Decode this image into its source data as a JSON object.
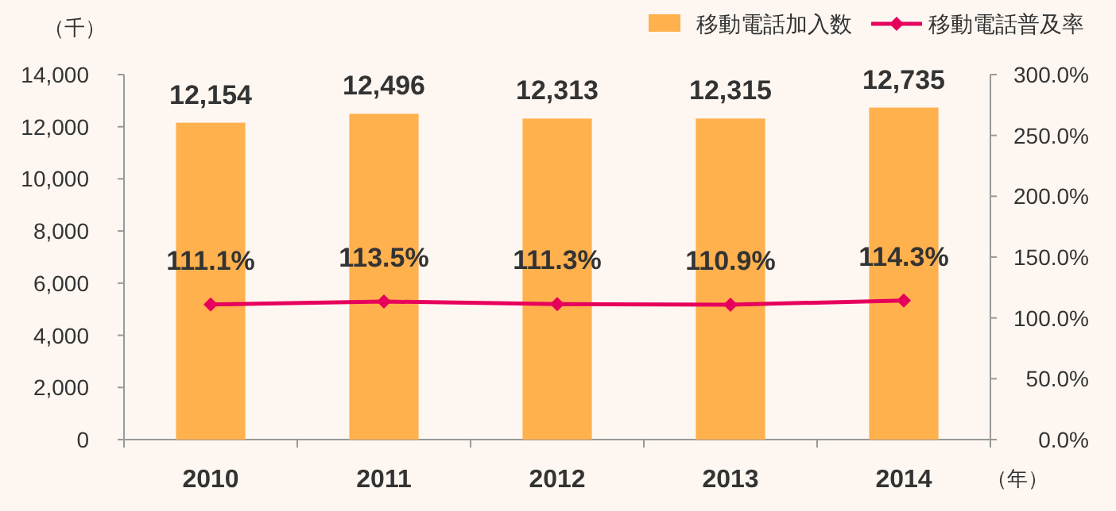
{
  "chart_data": {
    "type": "bar",
    "ylabel": "（千）",
    "xlabel": "（年）",
    "categories": [
      "2010",
      "2011",
      "2012",
      "2013",
      "2014"
    ],
    "series": [
      {
        "name": "移動電話加入数",
        "color": "#ffb14e",
        "values": [
          12154,
          12496,
          12313,
          12315,
          12735
        ],
        "value_labels": [
          "12,154",
          "12,496",
          "12,313",
          "12,315",
          "12,735"
        ]
      },
      {
        "name": "移動電話普及率",
        "type": "line",
        "axis": "y2",
        "color": "#e6005c",
        "values": [
          111.1,
          113.5,
          111.3,
          110.9,
          114.3
        ],
        "value_labels": [
          "111.1%",
          "113.5%",
          "111.3%",
          "110.9%",
          "114.3%"
        ]
      }
    ],
    "ylim": [
      0,
      14000
    ],
    "yticks": [
      {
        "value": 0,
        "label": "0"
      },
      {
        "value": 2000,
        "label": "2,000"
      },
      {
        "value": 4000,
        "label": "4,000"
      },
      {
        "value": 6000,
        "label": "6,000"
      },
      {
        "value": 8000,
        "label": "8,000"
      },
      {
        "value": 10000,
        "label": "10,000"
      },
      {
        "value": 12000,
        "label": "12,000"
      },
      {
        "value": 14000,
        "label": "14,000"
      }
    ],
    "y2lim": [
      0,
      300
    ],
    "y2ticks": [
      {
        "value": 0,
        "label": "0.0%"
      },
      {
        "value": 50,
        "label": "50.0%"
      },
      {
        "value": 100,
        "label": "100.0%"
      },
      {
        "value": 150,
        "label": "150.0%"
      },
      {
        "value": 200,
        "label": "200.0%"
      },
      {
        "value": 250,
        "label": "250.0%"
      },
      {
        "value": 300,
        "label": "300.0%"
      }
    ],
    "legend": "top",
    "marker": "diamond",
    "grid": false
  }
}
